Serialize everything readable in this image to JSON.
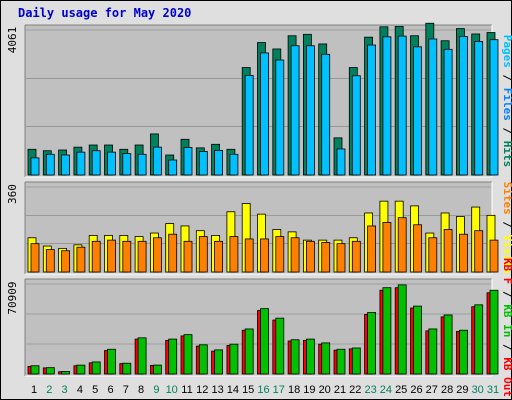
{
  "title": "Daily usage for May 2020",
  "colors": {
    "hits": "#00805c",
    "files": "#00c0ff",
    "pages": "#00c0ff",
    "visits": "#ffff00",
    "sites": "#ff8000",
    "kbin": "#00c000",
    "kbout": "#ff0000",
    "weekend": "#00805c",
    "weekday": "#000000",
    "pane_bg": "#c0c0c0",
    "frame_bg": "#dfdfdf"
  },
  "chart_data": [
    {
      "type": "bar",
      "name": "hits-files-pages",
      "ymax_label": "4061",
      "ylim": [
        0,
        4061
      ],
      "legend": [
        {
          "text": "Pages",
          "color": "#00c0ff"
        },
        {
          "text": " / ",
          "color": "#000000"
        },
        {
          "text": "Files",
          "color": "#0080ff"
        },
        {
          "text": " / ",
          "color": "#000000"
        },
        {
          "text": "Hits",
          "color": "#00805c"
        }
      ],
      "categories": [
        "1",
        "2",
        "3",
        "4",
        "5",
        "6",
        "7",
        "8",
        "9",
        "10",
        "11",
        "12",
        "13",
        "14",
        "15",
        "16",
        "17",
        "18",
        "19",
        "20",
        "21",
        "22",
        "23",
        "24",
        "25",
        "26",
        "27",
        "28",
        "29",
        "30",
        "31"
      ],
      "series": [
        {
          "name": "Hits",
          "color": "#00805c",
          "values": [
            720,
            680,
            700,
            780,
            840,
            840,
            720,
            840,
            1150,
            560,
            1000,
            760,
            860,
            720,
            3010,
            3710,
            3530,
            3900,
            3940,
            3670,
            1040,
            3010,
            3860,
            4150,
            4160,
            3900,
            4250,
            3760,
            4100,
            3950,
            3990
          ]
        },
        {
          "name": "Files",
          "color": "#00c0ff",
          "values": [
            480,
            580,
            560,
            640,
            680,
            640,
            600,
            580,
            780,
            420,
            770,
            660,
            690,
            580,
            2790,
            3420,
            3220,
            3620,
            3620,
            3380,
            730,
            2780,
            3640,
            3870,
            3890,
            3590,
            3810,
            3520,
            3880,
            3740,
            3790
          ]
        },
        {
          "name": "Pages",
          "color": "#00c0ff",
          "values": [
            0,
            0,
            0,
            0,
            0,
            0,
            0,
            0,
            0,
            0,
            0,
            0,
            0,
            0,
            0,
            0,
            0,
            0,
            0,
            0,
            0,
            0,
            0,
            0,
            0,
            0,
            0,
            0,
            0,
            0,
            0
          ]
        }
      ]
    },
    {
      "type": "bar",
      "name": "visits-sites",
      "ymax_label": "360",
      "ylim": [
        0,
        360
      ],
      "legend": [
        {
          "text": "Sites",
          "color": "#ff8000"
        },
        {
          "text": " / ",
          "color": "#000000"
        },
        {
          "text": "Visits",
          "color": "#ffff00"
        }
      ],
      "categories": [
        "1",
        "2",
        "3",
        "4",
        "5",
        "6",
        "7",
        "8",
        "9",
        "10",
        "11",
        "12",
        "13",
        "14",
        "15",
        "16",
        "17",
        "18",
        "19",
        "20",
        "21",
        "22",
        "23",
        "24",
        "25",
        "26",
        "27",
        "28",
        "29",
        "30",
        "31"
      ],
      "series": [
        {
          "name": "Visits",
          "color": "#ffff00",
          "values": [
            145,
            110,
            100,
            115,
            155,
            155,
            155,
            150,
            165,
            205,
            195,
            175,
            155,
            255,
            290,
            245,
            180,
            170,
            135,
            135,
            135,
            145,
            250,
            300,
            300,
            280,
            165,
            250,
            235,
            275,
            240
          ]
        },
        {
          "name": "Sites",
          "color": "#ff8000",
          "values": [
            120,
            95,
            90,
            105,
            130,
            135,
            130,
            130,
            145,
            160,
            130,
            150,
            130,
            150,
            140,
            140,
            150,
            145,
            130,
            125,
            120,
            130,
            195,
            210,
            230,
            200,
            145,
            180,
            160,
            175,
            135
          ]
        }
      ]
    },
    {
      "type": "bar",
      "name": "kbin-kbout",
      "ymax_label": "70909",
      "ylim": [
        0,
        70909
      ],
      "legend": [
        {
          "text": "KB F",
          "color": "#ff0000"
        },
        {
          "text": " / ",
          "color": "#000000"
        },
        {
          "text": "KB In",
          "color": "#00c000"
        },
        {
          "text": " / ",
          "color": "#000000"
        },
        {
          "text": "KB Out",
          "color": "#ff0000"
        }
      ],
      "categories": [
        "1",
        "2",
        "3",
        "4",
        "5",
        "6",
        "7",
        "8",
        "9",
        "10",
        "11",
        "12",
        "13",
        "14",
        "15",
        "16",
        "17",
        "18",
        "19",
        "20",
        "21",
        "22",
        "23",
        "24",
        "25",
        "26",
        "27",
        "28",
        "29",
        "30",
        "31"
      ],
      "series": [
        {
          "name": "KB In",
          "color": "#00c000",
          "values": [
            6500,
            5000,
            2000,
            7000,
            9500,
            19500,
            8500,
            28500,
            7000,
            27500,
            31000,
            23000,
            19000,
            23500,
            35500,
            51500,
            44000,
            27000,
            27500,
            24500,
            19500,
            20500,
            48500,
            68000,
            70200,
            53500,
            35500,
            46500,
            34500,
            54500,
            66000
          ]
        },
        {
          "name": "KB Out",
          "color": "#ff0000",
          "values": [
            6000,
            4800,
            1800,
            6500,
            8800,
            18500,
            8200,
            27500,
            6800,
            26500,
            30000,
            22000,
            18000,
            22500,
            34500,
            50000,
            42500,
            26000,
            26500,
            23500,
            18800,
            19800,
            47000,
            66000,
            68000,
            52000,
            34000,
            45000,
            33500,
            53000,
            64000
          ]
        }
      ]
    }
  ]
}
